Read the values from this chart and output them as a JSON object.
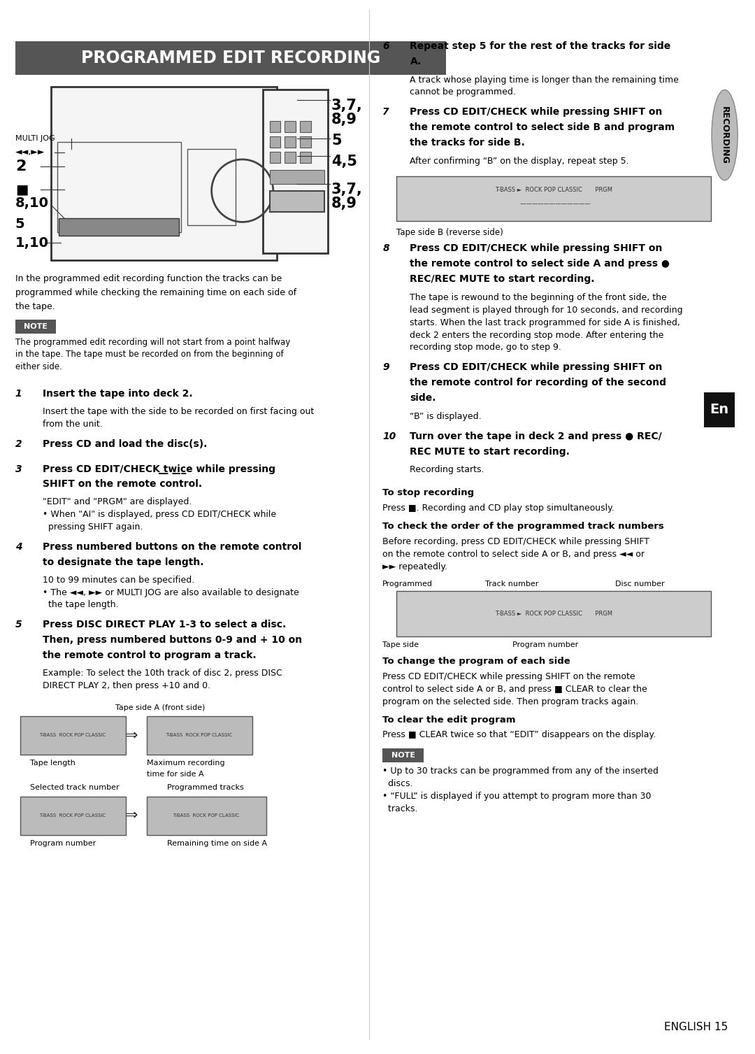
{
  "page_bg": "#ffffff",
  "title_banner_bg": "#555555",
  "title_text": "PROGRAMMED EDIT RECORDING",
  "title_text_color": "#ffffff",
  "note_bg": "#555555",
  "note_text_color": "#ffffff",
  "recording_label": "RECORDING",
  "body_text_color": "#000000",
  "page_number": "ENGLISH 15",
  "en_label": "En"
}
